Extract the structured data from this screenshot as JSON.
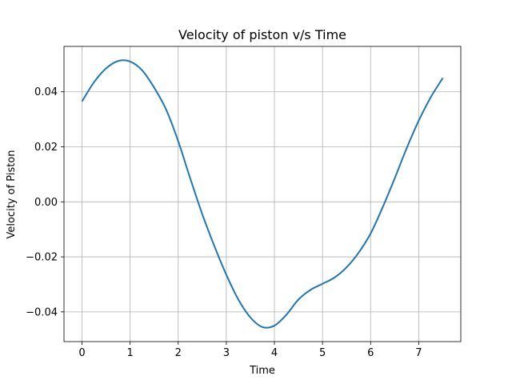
{
  "chart_data": {
    "type": "line",
    "title": "Velocity of piston v/s Time",
    "xlabel": "Time",
    "ylabel": "Velocity of Piston",
    "xlim": [
      -0.375,
      7.875
    ],
    "ylim": [
      -0.0508,
      0.0565
    ],
    "xticks": [
      0,
      1,
      2,
      3,
      4,
      5,
      6,
      7
    ],
    "xtick_labels": [
      "0",
      "1",
      "2",
      "3",
      "4",
      "5",
      "6",
      "7"
    ],
    "yticks": [
      -0.04,
      -0.02,
      0.0,
      0.02,
      0.04
    ],
    "ytick_labels": [
      "−0.04",
      "−0.02",
      "0.00",
      "0.02",
      "0.04"
    ],
    "grid": true,
    "series": [
      {
        "color": "#1f77b4",
        "x": [
          0.0,
          0.25,
          0.5,
          0.75,
          1.0,
          1.25,
          1.5,
          1.75,
          2.0,
          2.25,
          2.5,
          2.75,
          3.0,
          3.25,
          3.5,
          3.75,
          4.0,
          4.25,
          4.5,
          4.75,
          5.0,
          5.25,
          5.5,
          5.75,
          6.0,
          6.25,
          6.5,
          6.75,
          7.0,
          7.25,
          7.5
        ],
        "y": [
          0.0365,
          0.0435,
          0.0485,
          0.0512,
          0.051,
          0.0478,
          0.0415,
          0.0335,
          0.022,
          0.0085,
          -0.0045,
          -0.016,
          -0.0265,
          -0.0355,
          -0.042,
          -0.0455,
          -0.045,
          -0.041,
          -0.0355,
          -0.032,
          -0.0298,
          -0.0275,
          -0.0238,
          -0.0185,
          -0.0115,
          -0.002,
          0.0085,
          0.0195,
          0.0295,
          0.038,
          0.045
        ]
      }
    ]
  }
}
